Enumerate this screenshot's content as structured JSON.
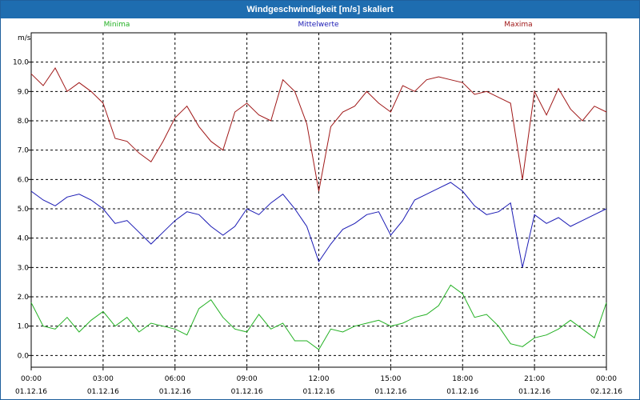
{
  "window": {
    "title": "Windgeschwindigkeit [m/s] skaliert"
  },
  "chart_data": {
    "type": "line",
    "title": "Windgeschwindigkeit [m/s] skaliert",
    "ylabel": "m/s",
    "xlabel": "",
    "ylim": [
      -0.4,
      11.0
    ],
    "xlim": [
      0,
      24
    ],
    "grid": true,
    "legend_position": "top",
    "y_ticks": [
      "0.0",
      "1.0",
      "2.0",
      "3.0",
      "4.0",
      "5.0",
      "6.0",
      "7.0",
      "8.0",
      "9.0",
      "10.0"
    ],
    "x_tick_times": [
      "00:00",
      "03:00",
      "06:00",
      "09:00",
      "12:00",
      "15:00",
      "18:00",
      "21:00",
      "00:00"
    ],
    "x_tick_dates": [
      "01.12.16",
      "01.12.16",
      "01.12.16",
      "01.12.16",
      "01.12.16",
      "01.12.16",
      "01.12.16",
      "01.12.16",
      "02.12.16"
    ],
    "series": [
      {
        "name": "Minima",
        "color": "#22b022",
        "x": [
          0,
          0.5,
          1,
          1.5,
          2,
          2.5,
          3,
          3.5,
          4,
          4.5,
          5,
          5.5,
          6,
          6.5,
          7,
          7.5,
          8,
          8.5,
          9,
          9.5,
          10,
          10.5,
          11,
          11.5,
          12,
          12.5,
          13,
          13.5,
          14,
          14.5,
          15,
          15.5,
          16,
          16.5,
          17,
          17.5,
          18,
          18.5,
          19,
          19.5,
          20,
          20.5,
          21,
          21.5,
          22,
          22.5,
          23,
          23.5,
          24
        ],
        "values": [
          1.8,
          1.0,
          0.9,
          1.3,
          0.8,
          1.2,
          1.5,
          1.0,
          1.3,
          0.8,
          1.1,
          1.0,
          0.9,
          0.7,
          1.6,
          1.9,
          1.3,
          0.9,
          0.8,
          1.4,
          0.9,
          1.1,
          0.5,
          0.5,
          0.2,
          0.9,
          0.8,
          1.0,
          1.1,
          1.2,
          1.0,
          1.1,
          1.3,
          1.4,
          1.7,
          2.4,
          2.1,
          1.3,
          1.4,
          1.0,
          0.4,
          0.3,
          0.6,
          0.7,
          0.9,
          1.2,
          0.9,
          0.6,
          1.8
        ]
      },
      {
        "name": "Mittelwerte",
        "color": "#1a1ab4",
        "x": [
          0,
          0.5,
          1,
          1.5,
          2,
          2.5,
          3,
          3.5,
          4,
          4.5,
          5,
          5.5,
          6,
          6.5,
          7,
          7.5,
          8,
          8.5,
          9,
          9.5,
          10,
          10.5,
          11,
          11.5,
          12,
          12.5,
          13,
          13.5,
          14,
          14.5,
          15,
          15.5,
          16,
          16.5,
          17,
          17.5,
          18,
          18.5,
          19,
          19.5,
          20,
          20.5,
          21,
          21.5,
          22,
          22.5,
          23,
          23.5,
          24
        ],
        "values": [
          5.6,
          5.3,
          5.1,
          5.4,
          5.5,
          5.3,
          5.0,
          4.5,
          4.6,
          4.2,
          3.8,
          4.2,
          4.6,
          4.9,
          4.8,
          4.4,
          4.1,
          4.4,
          5.0,
          4.8,
          5.2,
          5.5,
          5.0,
          4.4,
          3.2,
          3.8,
          4.3,
          4.5,
          4.8,
          4.9,
          4.1,
          4.6,
          5.3,
          5.5,
          5.7,
          5.9,
          5.6,
          5.1,
          4.8,
          4.9,
          5.2,
          3.0,
          4.8,
          4.5,
          4.7,
          4.4,
          4.6,
          4.8,
          5.0
        ]
      },
      {
        "name": "Maxima",
        "color": "#a01818",
        "x": [
          0,
          0.5,
          1,
          1.5,
          2,
          2.5,
          3,
          3.5,
          4,
          4.5,
          5,
          5.5,
          6,
          6.5,
          7,
          7.5,
          8,
          8.5,
          9,
          9.5,
          10,
          10.5,
          11,
          11.5,
          12,
          12.5,
          13,
          13.5,
          14,
          14.5,
          15,
          15.5,
          16,
          16.5,
          17,
          17.5,
          18,
          18.5,
          19,
          19.5,
          20,
          20.5,
          21,
          21.5,
          22,
          22.5,
          23,
          23.5,
          24
        ],
        "values": [
          9.6,
          9.2,
          9.8,
          9.0,
          9.3,
          9.0,
          8.6,
          7.4,
          7.3,
          6.9,
          6.6,
          7.3,
          8.1,
          8.5,
          7.8,
          7.3,
          7.0,
          8.3,
          8.6,
          8.2,
          8.0,
          9.4,
          9.0,
          7.9,
          5.6,
          7.8,
          8.3,
          8.5,
          9.0,
          8.6,
          8.3,
          9.2,
          9.0,
          9.4,
          9.5,
          9.4,
          9.3,
          8.9,
          9.0,
          8.8,
          8.6,
          6.0,
          9.0,
          8.2,
          9.1,
          8.4,
          8.0,
          8.5,
          8.3
        ]
      }
    ]
  }
}
